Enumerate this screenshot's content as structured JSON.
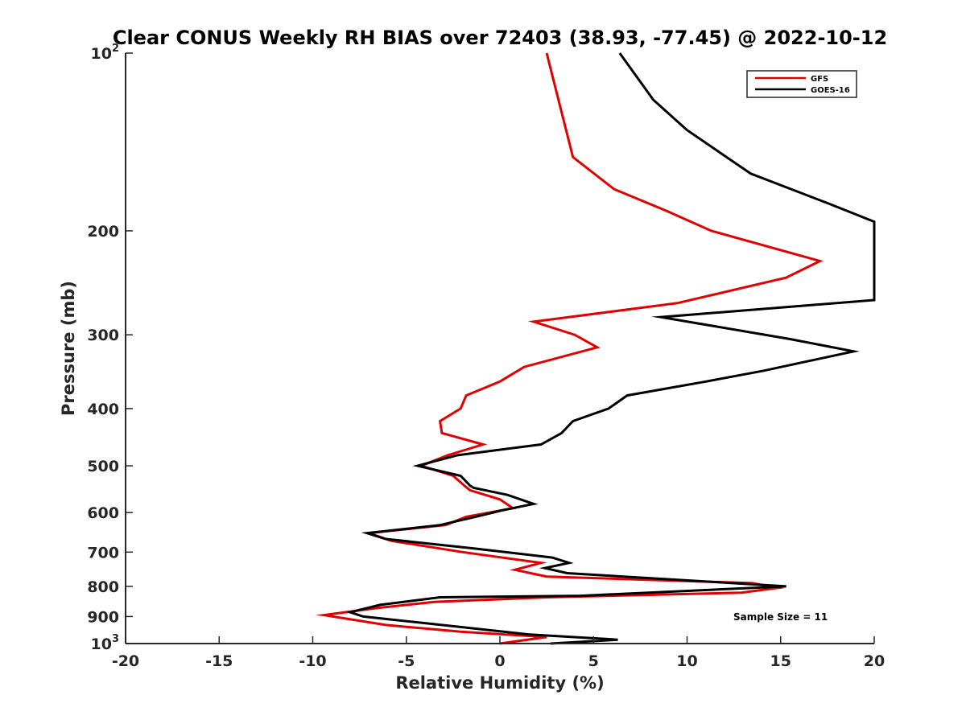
{
  "chart_data": {
    "type": "line",
    "title": "Clear CONUS Weekly RH BIAS over 72403 (38.93, -77.45) @ 2022-10-12",
    "xlabel": "Relative Humidity (%)",
    "ylabel": "Pressure (mb)",
    "xlim": [
      -20,
      20
    ],
    "ylim": [
      100,
      1000
    ],
    "y_scale": "log",
    "y_reversed": true,
    "x_ticks": [
      "-20",
      "-15",
      "-10",
      "-5",
      "0",
      "5",
      "10",
      "15",
      "20"
    ],
    "y_ticks": [
      {
        "value": 100,
        "base": "10",
        "exp": "2"
      },
      {
        "value": 200,
        "label": "200"
      },
      {
        "value": 300,
        "label": "300"
      },
      {
        "value": 400,
        "label": "400"
      },
      {
        "value": 500,
        "label": "500"
      },
      {
        "value": 600,
        "label": "600"
      },
      {
        "value": 700,
        "label": "700"
      },
      {
        "value": 800,
        "label": "800"
      },
      {
        "value": 900,
        "label": "900"
      },
      {
        "value": 1000,
        "base": "10",
        "exp": "3"
      }
    ],
    "grid": false,
    "legend_position": "top-right",
    "annotation": "Sample Size = 11",
    "series": [
      {
        "name": "GFS",
        "color": "#e00000",
        "points": [
          [
            2.5,
            100
          ],
          [
            3.9,
            150
          ],
          [
            6.1,
            170
          ],
          [
            8.9,
            185
          ],
          [
            11.3,
            200
          ],
          [
            17.1,
            225
          ],
          [
            15.3,
            240
          ],
          [
            9.5,
            265
          ],
          [
            1.8,
            285
          ],
          [
            4.0,
            300
          ],
          [
            5.2,
            315
          ],
          [
            1.3,
            340
          ],
          [
            0.0,
            360
          ],
          [
            -1.8,
            380
          ],
          [
            -2.1,
            400
          ],
          [
            -3.2,
            420
          ],
          [
            -3.1,
            440
          ],
          [
            -0.9,
            460
          ],
          [
            -2.8,
            480
          ],
          [
            -4.2,
            500
          ],
          [
            -2.5,
            520
          ],
          [
            -1.9,
            540
          ],
          [
            -1.6,
            550
          ],
          [
            0.0,
            570
          ],
          [
            0.7,
            590
          ],
          [
            -1.8,
            610
          ],
          [
            -2.9,
            630
          ],
          [
            -7.0,
            650
          ],
          [
            -5.8,
            670
          ],
          [
            -2.0,
            700
          ],
          [
            2.2,
            730
          ],
          [
            0.8,
            750
          ],
          [
            2.5,
            770
          ],
          [
            13.5,
            790
          ],
          [
            14.8,
            805
          ],
          [
            12.9,
            820
          ],
          [
            2.5,
            835
          ],
          [
            -3.5,
            850
          ],
          [
            -6.5,
            870
          ],
          [
            -9.4,
            895
          ],
          [
            -6.1,
            930
          ],
          [
            -2.1,
            955
          ],
          [
            2.5,
            975
          ],
          [
            0.0,
            1000
          ]
        ]
      },
      {
        "name": "GOES-16",
        "color": "#000000",
        "points": [
          [
            6.4,
            100
          ],
          [
            8.2,
            120
          ],
          [
            10.0,
            135
          ],
          [
            13.4,
            160
          ],
          [
            17.6,
            180
          ],
          [
            20.0,
            193
          ],
          [
            20.0,
            262
          ],
          [
            8.6,
            280
          ],
          [
            15.5,
            305
          ],
          [
            18.9,
            320
          ],
          [
            14.1,
            345
          ],
          [
            11.0,
            360
          ],
          [
            6.8,
            380
          ],
          [
            5.8,
            400
          ],
          [
            3.9,
            420
          ],
          [
            3.3,
            440
          ],
          [
            2.2,
            460
          ],
          [
            -2.3,
            480
          ],
          [
            -4.4,
            500
          ],
          [
            -2.1,
            520
          ],
          [
            -1.6,
            540
          ],
          [
            -1.4,
            545
          ],
          [
            0.4,
            560
          ],
          [
            1.8,
            580
          ],
          [
            0.1,
            595
          ],
          [
            -1.3,
            610
          ],
          [
            -3.2,
            630
          ],
          [
            -7.1,
            650
          ],
          [
            -6.1,
            665
          ],
          [
            -1.4,
            690
          ],
          [
            2.8,
            715
          ],
          [
            3.7,
            730
          ],
          [
            2.4,
            745
          ],
          [
            3.6,
            760
          ],
          [
            15.3,
            800
          ],
          [
            4.3,
            830
          ],
          [
            -3.2,
            835
          ],
          [
            -6.4,
            860
          ],
          [
            -8.0,
            885
          ],
          [
            -7.3,
            900
          ],
          [
            -3.8,
            925
          ],
          [
            1.5,
            965
          ],
          [
            6.3,
            985
          ],
          [
            2.7,
            1000
          ]
        ]
      }
    ]
  }
}
